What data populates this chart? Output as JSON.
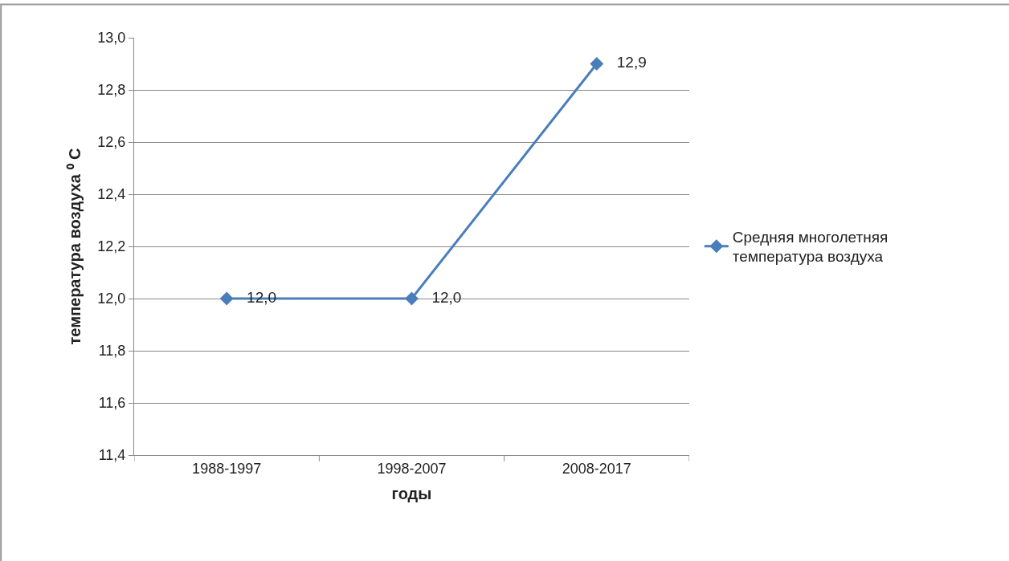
{
  "chart_data": {
    "type": "line",
    "xlabel": "годы",
    "ylabel": "температура воздуха ⁰ C",
    "categories": [
      "1988-1997",
      "1998-2007",
      "2008-2017"
    ],
    "series": [
      {
        "name": "Средняя многолетняя температура воздуха",
        "color": "#4a7ebb",
        "values": [
          12.0,
          12.0,
          12.9
        ],
        "value_labels": [
          "12,0",
          "12,0",
          "12,9"
        ]
      }
    ],
    "ylim": [
      11.4,
      13.0
    ],
    "yticks": [
      {
        "value": 11.4,
        "label": "11,4"
      },
      {
        "value": 11.6,
        "label": "11,6"
      },
      {
        "value": 11.8,
        "label": "11,8"
      },
      {
        "value": 12.0,
        "label": "12,0"
      },
      {
        "value": 12.2,
        "label": "12,2"
      },
      {
        "value": 12.4,
        "label": "12,4"
      },
      {
        "value": 12.6,
        "label": "12,6"
      },
      {
        "value": 12.8,
        "label": "12,8"
      },
      {
        "value": 13.0,
        "label": "13,0"
      }
    ],
    "grid": "y",
    "legend": "right",
    "marker": "diamond",
    "line_style": "solid"
  }
}
